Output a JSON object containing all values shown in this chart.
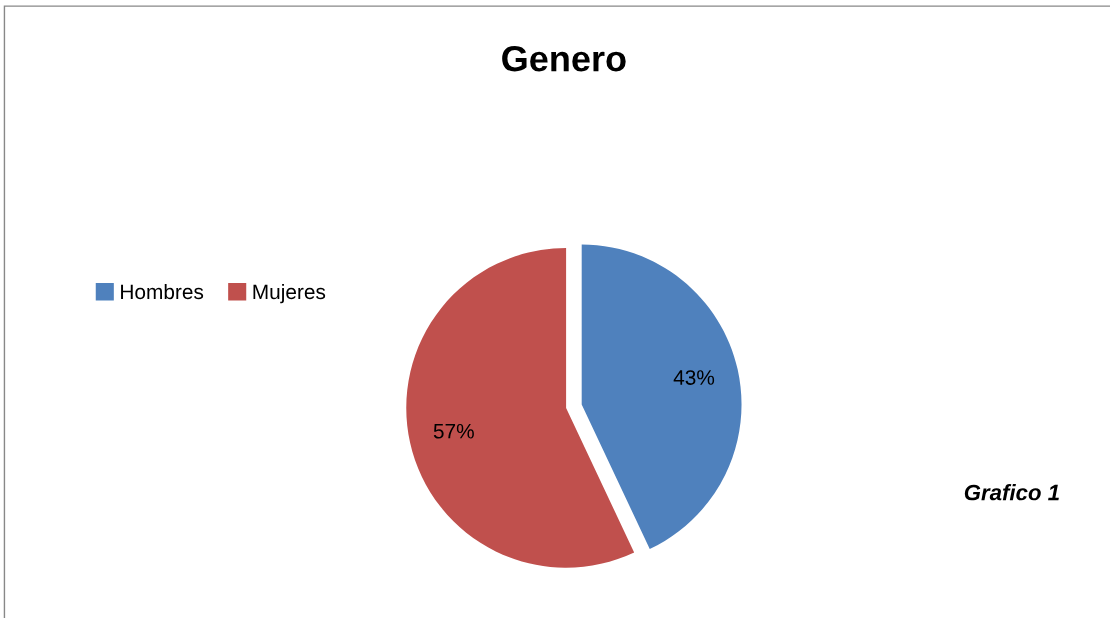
{
  "chart_data": {
    "type": "pie",
    "title": "Genero",
    "categories": [
      "Hombres",
      "Mujeres"
    ],
    "values": [
      43,
      57
    ],
    "colors": [
      "#4f81bd",
      "#c0504d"
    ],
    "value_labels": [
      "43%",
      "57%"
    ],
    "legend": "left",
    "annotations": [
      "Grafico 1"
    ]
  }
}
